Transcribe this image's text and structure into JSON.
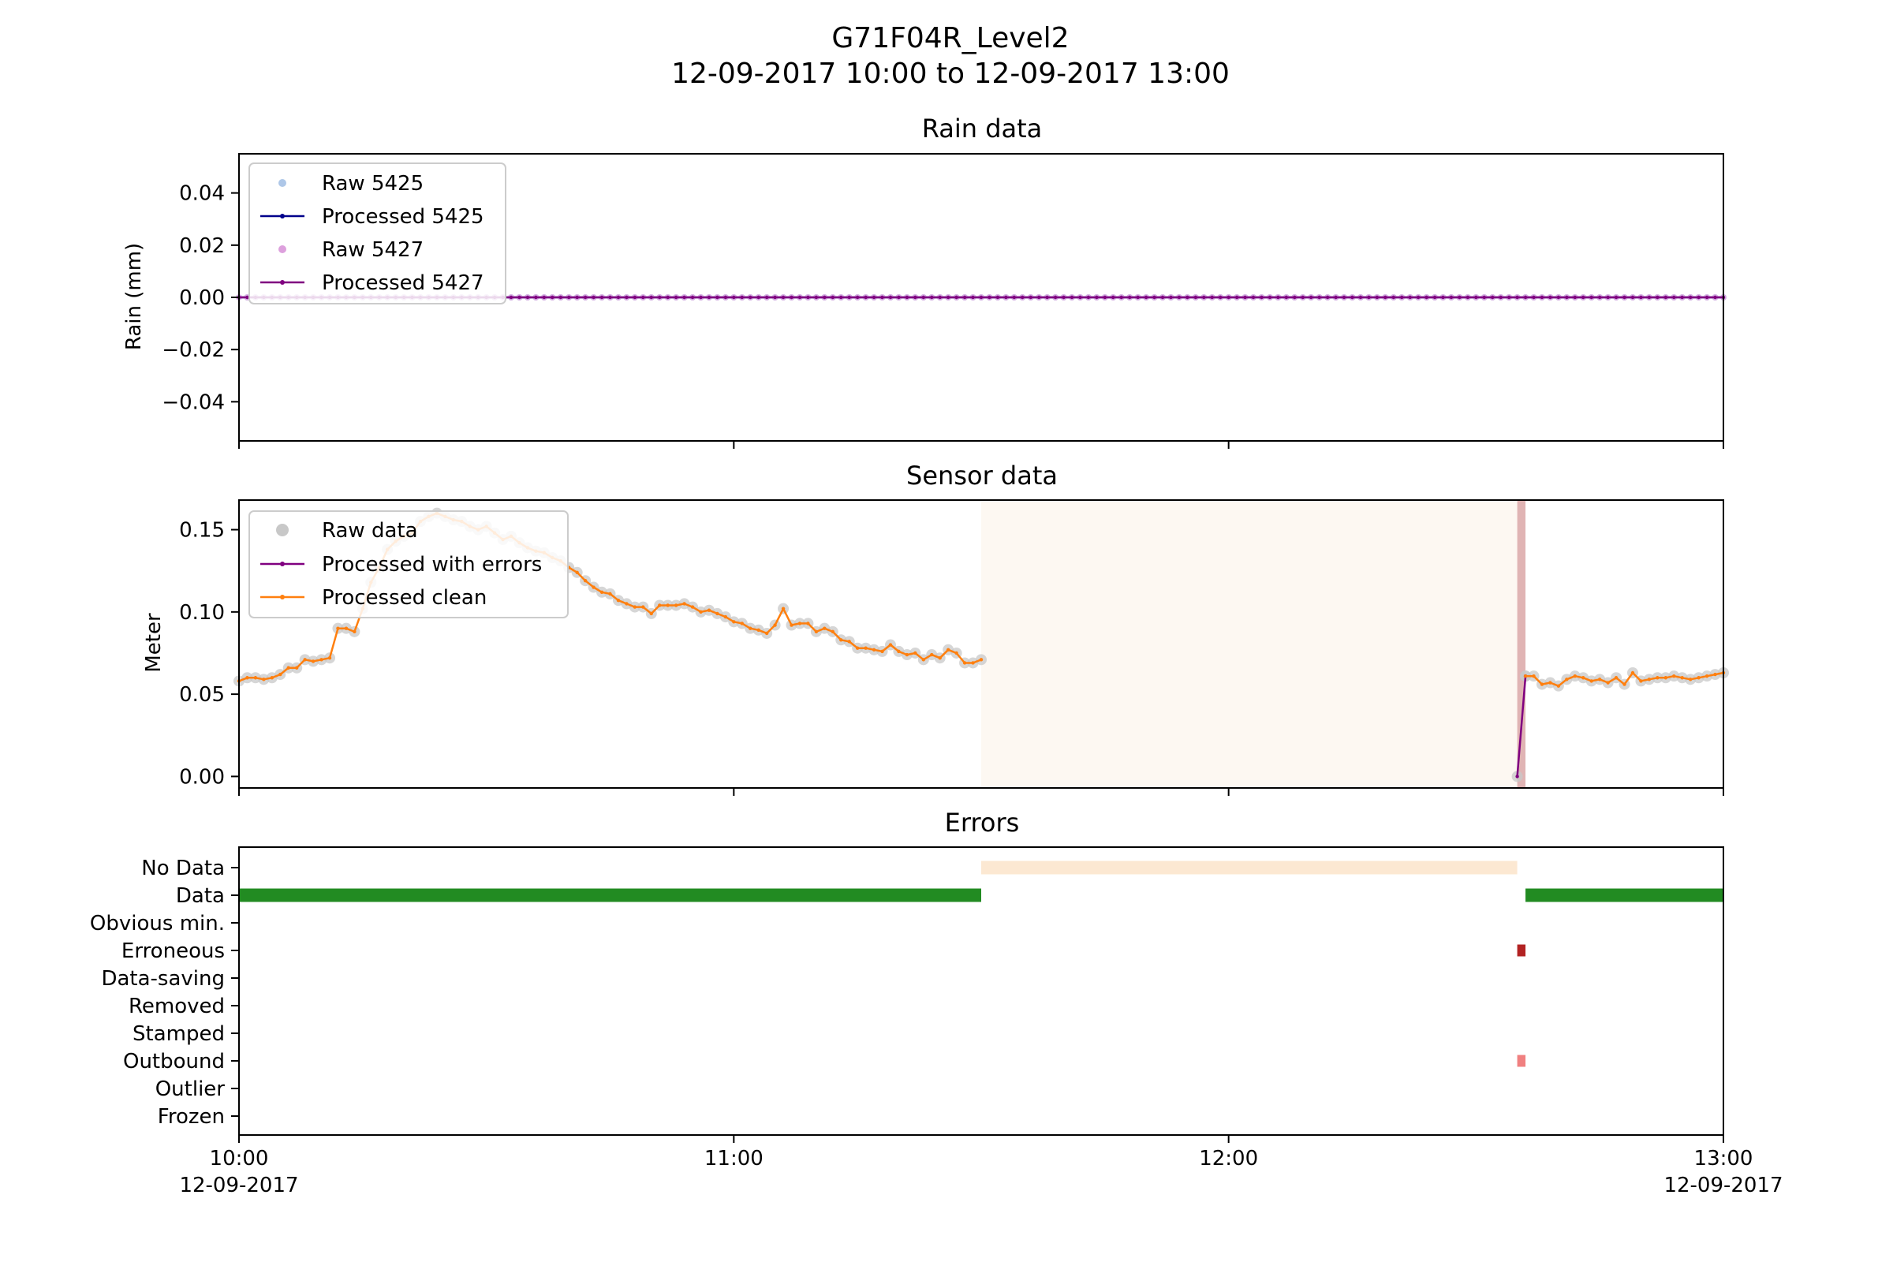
{
  "figure": {
    "title_line1": "G71F04R_Level2",
    "title_line2": "12-09-2017 10:00 to 12-09-2017 13:00"
  },
  "x_axis": {
    "range_minutes": [
      0,
      180
    ],
    "ticks": [
      {
        "minute": 0,
        "time": "10:00",
        "date": "12-09-2017"
      },
      {
        "minute": 60,
        "time": "11:00",
        "date": ""
      },
      {
        "minute": 120,
        "time": "12:00",
        "date": ""
      },
      {
        "minute": 180,
        "time": "13:00",
        "date": "12-09-2017"
      }
    ]
  },
  "chart_data": [
    {
      "type": "line",
      "title": "Rain data",
      "ylabel": "Rain (mm)",
      "xlabel": "",
      "ylim": [
        -0.055,
        0.055
      ],
      "yticks": [
        {
          "value": 0.04,
          "label": "0.04"
        },
        {
          "value": 0.02,
          "label": "0.02"
        },
        {
          "value": 0.0,
          "label": "0.00"
        },
        {
          "value": -0.02,
          "label": "−0.02"
        },
        {
          "value": -0.04,
          "label": "−0.04"
        }
      ],
      "legend_position": "top-left",
      "grid": false,
      "sample_interval_minutes": 1,
      "series": [
        {
          "name": "Raw 5425",
          "style": "points",
          "color": "#aec7e8",
          "constant_value": 0.0
        },
        {
          "name": "Processed 5425",
          "style": "line-markers",
          "color": "#00008b",
          "constant_value": 0.0
        },
        {
          "name": "Raw 5427",
          "style": "points",
          "color": "#dda0dd",
          "constant_value": 0.0
        },
        {
          "name": "Processed 5427",
          "style": "line-markers",
          "color": "#800080",
          "constant_value": 0.0
        }
      ]
    },
    {
      "type": "line",
      "title": "Sensor data",
      "ylabel": "Meter",
      "xlabel": "",
      "ylim": [
        -0.007,
        0.168
      ],
      "yticks": [
        {
          "value": 0.15,
          "label": "0.15"
        },
        {
          "value": 0.1,
          "label": "0.10"
        },
        {
          "value": 0.05,
          "label": "0.05"
        },
        {
          "value": 0.0,
          "label": "0.00"
        }
      ],
      "legend_position": "top-left",
      "grid": false,
      "shaded_regions": [
        {
          "label": "No Data",
          "x_start": 90,
          "x_end": 155,
          "color": "#fdf8f2"
        },
        {
          "label": "Erroneous",
          "x_start": 155,
          "x_end": 156,
          "color": "#e0b4b4"
        }
      ],
      "series": [
        {
          "name": "Raw data",
          "style": "points",
          "color": "#c8c8c8"
        },
        {
          "name": "Processed with errors",
          "style": "line-markers",
          "color": "#800080"
        },
        {
          "name": "Processed clean",
          "style": "line-markers",
          "color": "#ff7f0e"
        }
      ],
      "segments": [
        {
          "kind": "clean",
          "x": [
            0,
            1,
            2,
            3,
            4,
            5,
            6,
            7,
            8,
            9,
            10,
            11,
            12,
            13,
            14,
            15,
            16,
            17,
            18,
            19,
            20,
            21,
            22,
            23,
            24,
            25,
            26,
            27,
            28,
            29,
            30,
            31,
            32,
            33,
            34,
            35,
            36,
            37,
            38,
            39,
            40,
            41,
            42,
            43,
            44,
            45,
            46,
            47,
            48,
            49,
            50,
            51,
            52,
            53,
            54,
            55,
            56,
            57,
            58,
            59,
            60,
            61,
            62,
            63,
            64,
            65,
            66,
            67,
            68,
            69,
            70,
            71,
            72,
            73,
            74,
            75,
            76,
            77,
            78,
            79,
            80,
            81,
            82,
            83,
            84,
            85,
            86,
            87,
            88,
            89,
            90
          ],
          "y": [
            0.058,
            0.06,
            0.06,
            0.059,
            0.06,
            0.062,
            0.066,
            0.066,
            0.071,
            0.07,
            0.071,
            0.072,
            0.09,
            0.09,
            0.088,
            0.102,
            0.118,
            0.127,
            0.138,
            0.143,
            0.146,
            0.148,
            0.155,
            0.158,
            0.16,
            0.158,
            0.156,
            0.155,
            0.152,
            0.15,
            0.152,
            0.148,
            0.144,
            0.146,
            0.142,
            0.139,
            0.137,
            0.136,
            0.133,
            0.131,
            0.127,
            0.124,
            0.119,
            0.115,
            0.112,
            0.111,
            0.107,
            0.105,
            0.103,
            0.103,
            0.099,
            0.104,
            0.104,
            0.104,
            0.105,
            0.103,
            0.1,
            0.101,
            0.099,
            0.097,
            0.094,
            0.093,
            0.09,
            0.089,
            0.087,
            0.092,
            0.102,
            0.092,
            0.093,
            0.093,
            0.088,
            0.09,
            0.088,
            0.083,
            0.082,
            0.078,
            0.078,
            0.077,
            0.076,
            0.08,
            0.076,
            0.074,
            0.075,
            0.071,
            0.074,
            0.072,
            0.077,
            0.075,
            0.069,
            0.069,
            0.071
          ]
        },
        {
          "kind": "errors",
          "x": [
            155,
            156
          ],
          "y": [
            0.0,
            0.061
          ]
        },
        {
          "kind": "clean",
          "x": [
            156,
            157,
            158,
            159,
            160,
            161,
            162,
            163,
            164,
            165,
            166,
            167,
            168,
            169,
            170,
            171,
            172,
            173,
            174,
            175,
            176,
            177,
            178,
            179,
            180
          ],
          "y": [
            0.061,
            0.061,
            0.056,
            0.057,
            0.055,
            0.059,
            0.061,
            0.06,
            0.058,
            0.059,
            0.057,
            0.06,
            0.056,
            0.063,
            0.058,
            0.059,
            0.06,
            0.06,
            0.061,
            0.06,
            0.059,
            0.06,
            0.061,
            0.062,
            0.063
          ]
        }
      ]
    },
    {
      "type": "bar",
      "title": "Errors",
      "xlabel": "",
      "ylabel": "",
      "grid": false,
      "categories": [
        "No Data",
        "Data",
        "Obvious min.",
        "Erroneous",
        "Data-saving",
        "Removed",
        "Stamped",
        "Outbound",
        "Outlier",
        "Frozen"
      ],
      "intervals": [
        {
          "category": "No Data",
          "x_start": 90,
          "x_end": 155,
          "color": "#fce8d2"
        },
        {
          "category": "Data",
          "x_start": 0,
          "x_end": 90,
          "color": "#228b22"
        },
        {
          "category": "Data",
          "x_start": 156,
          "x_end": 180,
          "color": "#228b22"
        },
        {
          "category": "Erroneous",
          "x_start": 155,
          "x_end": 156,
          "color": "#b22222"
        },
        {
          "category": "Outbound",
          "x_start": 155,
          "x_end": 156,
          "color": "#f08080"
        }
      ]
    }
  ]
}
